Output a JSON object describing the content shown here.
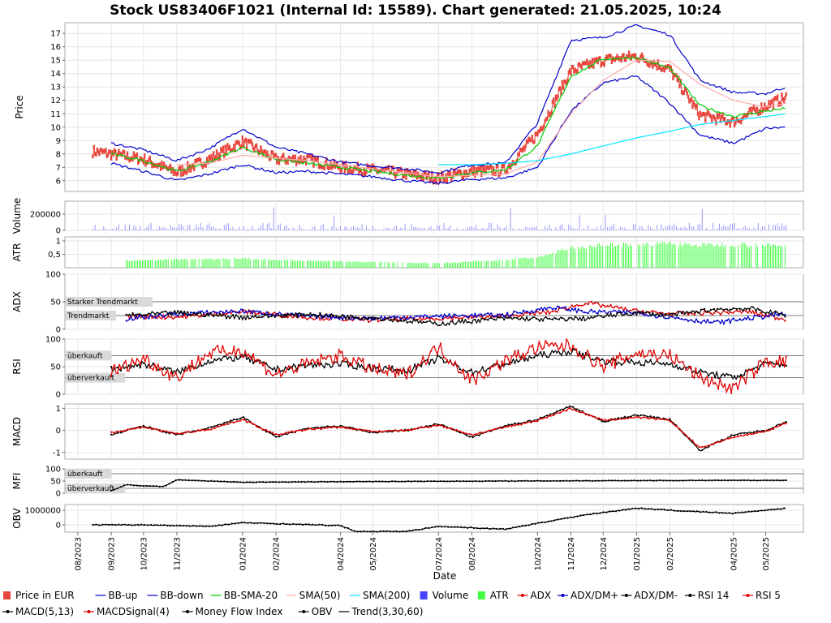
{
  "title": "Stock US83406F1021 (Internal Id: 15589). Chart generated: 21.05.2025, 10:24",
  "xlabel": "Date",
  "x_ticks": [
    "08/2023",
    "09/2023",
    "10/2023",
    "11/2023",
    "01/2024",
    "02/2024",
    "04/2024",
    "05/2024",
    "07/2024",
    "08/2024",
    "10/2024",
    "11/2024",
    "12/2024",
    "01/2025",
    "02/2025",
    "04/2025",
    "05/2025"
  ],
  "chart_data": [
    {
      "type": "line",
      "panel": "price",
      "ylabel": "Price",
      "yticks": [
        6,
        7,
        8,
        9,
        10,
        11,
        12,
        13,
        14,
        15,
        16,
        17
      ],
      "ylim": [
        5.2,
        17.8
      ],
      "x_dates": [
        "2023-08-15",
        "2023-09-01",
        "2023-10-01",
        "2023-11-01",
        "2023-12-01",
        "2024-01-01",
        "2024-02-01",
        "2024-03-01",
        "2024-04-01",
        "2024-05-01",
        "2024-06-01",
        "2024-07-01",
        "2024-08-01",
        "2024-09-01",
        "2024-10-01",
        "2024-11-01",
        "2024-12-01",
        "2025-01-01",
        "2025-02-01",
        "2025-03-01",
        "2025-04-01",
        "2025-05-01",
        "2025-05-20"
      ],
      "series": [
        {
          "name": "Price in EUR",
          "color": "#e8453c",
          "values": [
            8.2,
            8.0,
            7.6,
            6.6,
            7.6,
            8.9,
            7.6,
            7.6,
            7.0,
            6.8,
            6.5,
            6.2,
            6.7,
            6.8,
            9.5,
            14.2,
            15.0,
            15.3,
            14.3,
            10.9,
            10.4,
            11.6,
            12.2
          ]
        },
        {
          "name": "BB-up",
          "color": "#0000cc",
          "values": [
            null,
            8.8,
            8.3,
            7.5,
            8.4,
            9.9,
            8.5,
            8.0,
            7.4,
            7.1,
            6.9,
            6.6,
            7.2,
            7.3,
            10.3,
            16.5,
            16.7,
            17.6,
            16.9,
            13.5,
            12.6,
            12.5,
            13.0
          ]
        },
        {
          "name": "BB-down",
          "color": "#0000cc",
          "values": [
            null,
            7.3,
            6.7,
            6.0,
            6.5,
            7.2,
            6.6,
            6.7,
            6.5,
            6.3,
            6.0,
            5.8,
            6.1,
            6.2,
            7.0,
            11.2,
            13.3,
            13.8,
            11.8,
            9.4,
            8.8,
            9.9,
            10.0
          ]
        },
        {
          "name": "BB-SMA-20",
          "color": "#00cc00",
          "values": [
            null,
            8.0,
            7.5,
            6.7,
            7.4,
            8.5,
            7.6,
            7.3,
            7.0,
            6.7,
            6.4,
            6.2,
            6.6,
            6.8,
            8.6,
            13.8,
            15.1,
            15.2,
            14.4,
            11.6,
            10.8,
            11.2,
            11.4
          ]
        },
        {
          "name": "SMA(50)",
          "color": "#ffaaaa",
          "values": [
            null,
            null,
            null,
            7.2,
            7.3,
            7.9,
            7.7,
            7.5,
            7.2,
            6.9,
            6.6,
            6.3,
            6.4,
            6.5,
            7.4,
            11.0,
            13.5,
            15.0,
            14.9,
            13.2,
            12.0,
            11.5,
            11.8
          ]
        },
        {
          "name": "SMA(200)",
          "color": "#00e5ff",
          "values": [
            null,
            null,
            null,
            null,
            null,
            null,
            null,
            null,
            null,
            null,
            null,
            7.2,
            7.2,
            7.3,
            7.5,
            8.0,
            8.6,
            9.2,
            9.7,
            10.2,
            10.5,
            10.8,
            11.0
          ]
        }
      ]
    },
    {
      "type": "bar",
      "panel": "volume",
      "ylabel": "Volume",
      "yticks": [
        0,
        200000
      ],
      "ylim": [
        0,
        360000
      ],
      "series": [
        {
          "name": "Volume",
          "color": "#4444ff"
        }
      ]
    },
    {
      "type": "bar",
      "panel": "atr",
      "ylabel": "ATR",
      "yticks": [
        0.5,
        1
      ],
      "ytick_labels": [
        "0,5",
        "1"
      ],
      "ylim": [
        0,
        1.15
      ],
      "x_dates": [
        "2023-09-15",
        "2023-11-01",
        "2024-01-01",
        "2024-03-01",
        "2024-05-01",
        "2024-07-01",
        "2024-09-01",
        "2024-10-01",
        "2024-11-01",
        "2024-12-01",
        "2025-01-01",
        "2025-02-01",
        "2025-03-01",
        "2025-04-01",
        "2025-05-20"
      ],
      "series": [
        {
          "name": "ATR",
          "color": "#44ff44",
          "values": [
            0.28,
            0.32,
            0.36,
            0.28,
            0.22,
            0.18,
            0.3,
            0.42,
            0.78,
            0.88,
            0.92,
            0.95,
            0.88,
            0.92,
            0.85
          ]
        }
      ]
    },
    {
      "type": "line",
      "panel": "adx",
      "ylabel": "ADX",
      "yticks": [
        0,
        50,
        100
      ],
      "ylim": [
        0,
        100
      ],
      "reference_lines": [
        {
          "value": 50,
          "label": "Starker Trendmarkt"
        },
        {
          "value": 25,
          "label": "Trendmarkt"
        }
      ],
      "x_dates": [
        "2023-09-15",
        "2023-11-01",
        "2024-01-01",
        "2024-03-01",
        "2024-05-01",
        "2024-07-01",
        "2024-09-01",
        "2024-10-15",
        "2024-11-15",
        "2025-01-01",
        "2025-02-01",
        "2025-03-15",
        "2025-04-15",
        "2025-05-20"
      ],
      "series": [
        {
          "name": "ADX",
          "color": "#e00000",
          "values": [
            24,
            22,
            32,
            22,
            17,
            20,
            24,
            32,
            48,
            33,
            28,
            30,
            32,
            18
          ]
        },
        {
          "name": "ADX/DM+",
          "color": "#0000cc",
          "values": [
            19,
            28,
            33,
            24,
            20,
            24,
            26,
            40,
            32,
            30,
            22,
            12,
            20,
            28
          ]
        },
        {
          "name": "ADX/DM-",
          "color": "#000000",
          "values": [
            25,
            30,
            22,
            27,
            21,
            10,
            20,
            18,
            20,
            30,
            26,
            36,
            38,
            26
          ]
        }
      ]
    },
    {
      "type": "line",
      "panel": "rsi",
      "ylabel": "RSI",
      "yticks": [
        0,
        50,
        100
      ],
      "ylim": [
        0,
        100
      ],
      "reference_lines": [
        {
          "value": 70,
          "label": "überkauft"
        },
        {
          "value": 30,
          "label": "überverkauft"
        }
      ],
      "x_dates": [
        "2023-09-01",
        "2023-10-01",
        "2023-11-01",
        "2023-12-01",
        "2024-01-01",
        "2024-02-01",
        "2024-03-01",
        "2024-04-01",
        "2024-05-01",
        "2024-06-01",
        "2024-07-01",
        "2024-08-01",
        "2024-09-01",
        "2024-10-01",
        "2024-11-01",
        "2024-12-01",
        "2025-01-01",
        "2025-02-01",
        "2025-03-01",
        "2025-04-01",
        "2025-05-01",
        "2025-05-20"
      ],
      "series": [
        {
          "name": "RSI 14",
          "color": "#000000",
          "values": [
            45,
            55,
            40,
            60,
            68,
            45,
            52,
            55,
            48,
            42,
            65,
            40,
            55,
            70,
            78,
            60,
            58,
            55,
            40,
            30,
            55,
            55
          ]
        },
        {
          "name": "RSI 5",
          "color": "#e00000",
          "values": [
            40,
            65,
            30,
            75,
            80,
            35,
            55,
            70,
            45,
            35,
            85,
            25,
            60,
            85,
            88,
            50,
            75,
            70,
            30,
            10,
            60,
            58
          ]
        }
      ]
    },
    {
      "type": "line",
      "panel": "macd",
      "ylabel": "MACD",
      "yticks": [
        -1,
        0,
        1
      ],
      "ylim": [
        -1.3,
        1.2
      ],
      "x_dates": [
        "2023-09-01",
        "2023-10-01",
        "2023-11-01",
        "2023-12-01",
        "2024-01-01",
        "2024-02-01",
        "2024-03-01",
        "2024-04-01",
        "2024-05-01",
        "2024-06-01",
        "2024-07-01",
        "2024-08-01",
        "2024-09-01",
        "2024-10-01",
        "2024-11-01",
        "2024-12-01",
        "2025-01-01",
        "2025-02-01",
        "2025-03-01",
        "2025-04-01",
        "2025-05-01",
        "2025-05-20"
      ],
      "series": [
        {
          "name": "MACD(5,13)",
          "color": "#000000",
          "values": [
            -0.2,
            0.2,
            -0.2,
            0.1,
            0.6,
            -0.3,
            0.1,
            0.2,
            -0.1,
            0.0,
            0.3,
            -0.3,
            0.2,
            0.5,
            1.1,
            0.4,
            0.7,
            0.5,
            -0.9,
            -0.2,
            0.0,
            0.4
          ]
        },
        {
          "name": "MACDSignal(4)",
          "color": "#e00000",
          "values": [
            -0.1,
            0.15,
            -0.15,
            0.05,
            0.5,
            -0.2,
            0.05,
            0.15,
            -0.05,
            0.0,
            0.25,
            -0.2,
            0.15,
            0.45,
            1.0,
            0.45,
            0.6,
            0.45,
            -0.8,
            -0.3,
            -0.05,
            0.35
          ]
        }
      ]
    },
    {
      "type": "line",
      "panel": "mfi",
      "ylabel": "MFI",
      "yticks": [
        0,
        50,
        100
      ],
      "ylim": [
        0,
        100
      ],
      "reference_lines": [
        {
          "value": 80,
          "label": "überkauft"
        },
        {
          "value": 20,
          "label": "überverkauft"
        }
      ],
      "x_dates": [
        "2023-09-01",
        "2023-09-15",
        "2023-10-01",
        "2023-10-20",
        "2023-11-01",
        "2024-01-01",
        "2024-05-01",
        "2024-09-01",
        "2025-01-01",
        "2025-05-20"
      ],
      "series": [
        {
          "name": "Money Flow Index",
          "color": "#000000",
          "values": [
            10,
            35,
            30,
            28,
            55,
            45,
            48,
            50,
            52,
            53
          ]
        }
      ]
    },
    {
      "type": "line",
      "panel": "obv",
      "ylabel": "OBV",
      "yticks": [
        0,
        1000000
      ],
      "ylim": [
        -500000,
        1400000
      ],
      "x_dates": [
        "2023-08-15",
        "2023-10-01",
        "2023-12-01",
        "2024-01-01",
        "2024-04-01",
        "2024-04-15",
        "2024-06-01",
        "2024-07-01",
        "2024-09-01",
        "2024-10-15",
        "2024-11-15",
        "2025-01-01",
        "2025-02-15",
        "2025-04-01",
        "2025-05-20"
      ],
      "series": [
        {
          "name": "OBV",
          "color": "#000000",
          "values": [
            0,
            0,
            -100000,
            150000,
            -50000,
            -450000,
            -450000,
            -100000,
            -300000,
            300000,
            700000,
            1150000,
            950000,
            800000,
            1150000
          ]
        },
        {
          "name": "Trend(3,30,60)",
          "color": "#000000"
        }
      ]
    }
  ]
}
